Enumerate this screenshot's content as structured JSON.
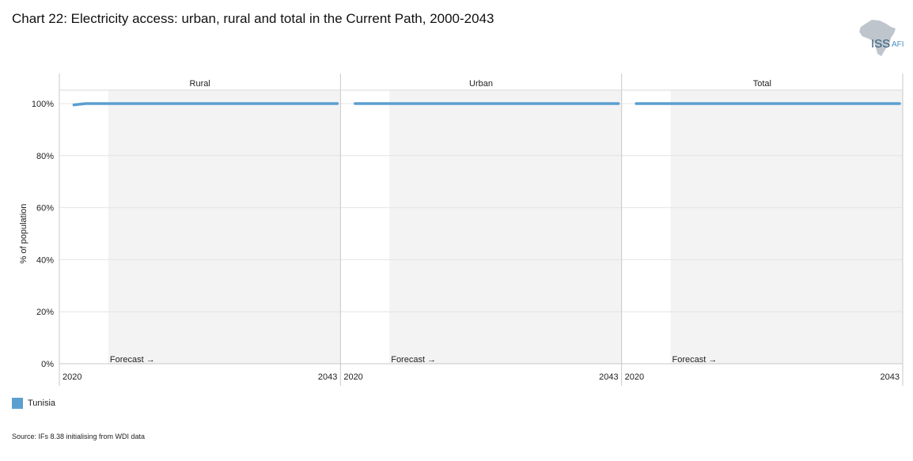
{
  "title": "Chart 22: Electricity access: urban, rural and total in the Current Path, 2000-2043",
  "logo": {
    "text_main": "ISS",
    "text_sub": "AFI",
    "map_icon": "africa-map-icon",
    "color_main": "#2f5d7c",
    "color_sub": "#4a90c2"
  },
  "chart_data": {
    "type": "line",
    "ylabel": "% of population",
    "ylim": [
      0,
      100
    ],
    "yticks": [
      0,
      20,
      40,
      60,
      80,
      100
    ],
    "ytick_labels": [
      "0%",
      "20%",
      "40%",
      "60%",
      "80%",
      "100%"
    ],
    "xlim": [
      2019,
      2043
    ],
    "forecast_start": 2023,
    "forecast_label": "Forecast →",
    "grid": true,
    "line_color": "#5b9fd0",
    "forecast_shade": "#f3f3f3",
    "panels": [
      {
        "name": "Rural",
        "x_labels": [
          "2020",
          "2043"
        ],
        "series": [
          {
            "name": "Tunisia",
            "x": [
              2020,
              2021,
              2043
            ],
            "values": [
              99.5,
              100,
              100
            ]
          }
        ]
      },
      {
        "name": "Urban",
        "x_labels": [
          "2020",
          "2043"
        ],
        "series": [
          {
            "name": "Tunisia",
            "x": [
              2020,
              2043
            ],
            "values": [
              100,
              100
            ]
          }
        ]
      },
      {
        "name": "Total",
        "x_labels": [
          "2020",
          "2043"
        ],
        "series": [
          {
            "name": "Tunisia",
            "x": [
              2020,
              2043
            ],
            "values": [
              100,
              100
            ]
          }
        ]
      }
    ]
  },
  "legend": {
    "label": "Tunisia",
    "color": "#5b9fd0",
    "placement": "bottom-left"
  },
  "source": "Source: IFs 8.38 initialising from WDI data"
}
